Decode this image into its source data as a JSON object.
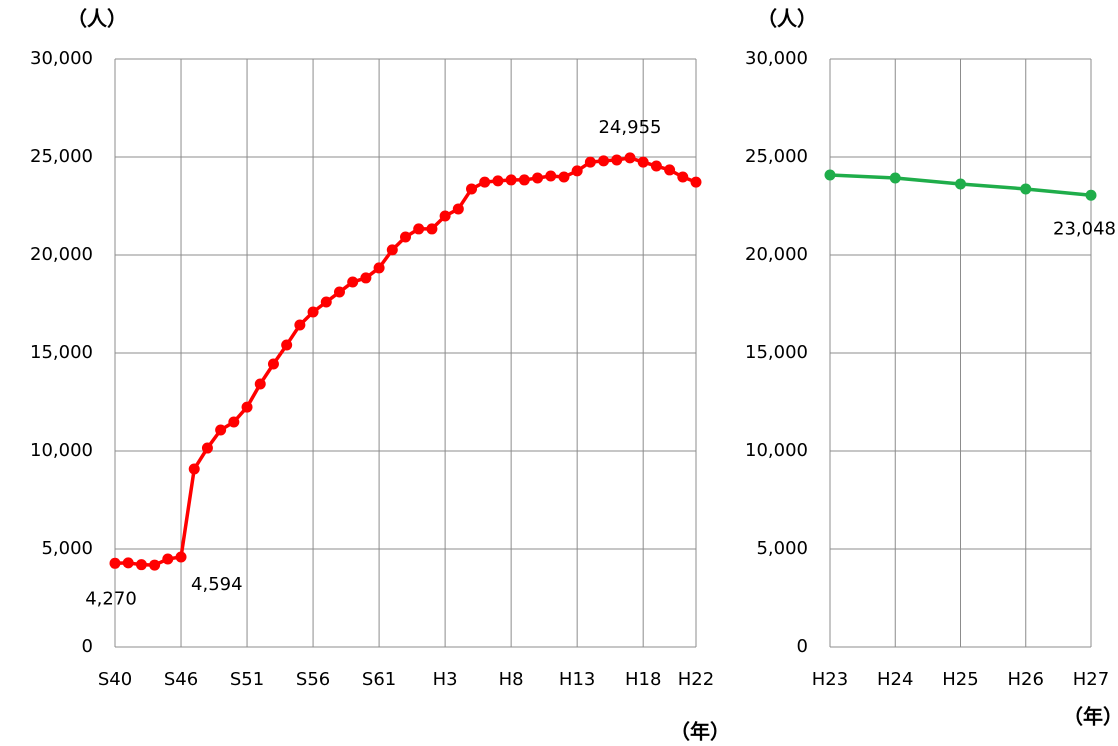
{
  "chart_data": [
    {
      "type": "line",
      "y_label": "（人）",
      "x_label": "（年）",
      "color": "#ff0000",
      "grid": true,
      "categories": [
        "S40",
        null,
        null,
        null,
        null,
        "S46",
        null,
        null,
        null,
        null,
        "S51",
        null,
        null,
        null,
        null,
        "S56",
        null,
        null,
        null,
        null,
        "S61",
        null,
        null,
        null,
        null,
        "H3",
        null,
        null,
        null,
        null,
        "H8",
        null,
        null,
        null,
        null,
        "H13",
        null,
        null,
        null,
        null,
        "H18",
        null,
        null,
        null,
        "H22"
      ],
      "values": [
        4270,
        4290,
        4200,
        4180,
        4490,
        4594,
        9080,
        10150,
        11070,
        11480,
        12240,
        13420,
        14440,
        15410,
        16430,
        17090,
        17600,
        18110,
        18620,
        18830,
        19340,
        20260,
        20920,
        21330,
        21330,
        21990,
        22350,
        23370,
        23720,
        23780,
        23830,
        23830,
        23930,
        24030,
        23980,
        24290,
        24740,
        24800,
        24850,
        24955,
        24740,
        24540,
        24340,
        23980,
        23720
      ],
      "value_labels": [
        "4,270",
        null,
        null,
        null,
        null,
        "4,594",
        null,
        null,
        null,
        null,
        null,
        null,
        null,
        null,
        null,
        null,
        null,
        null,
        null,
        null,
        null,
        null,
        null,
        null,
        null,
        null,
        null,
        null,
        null,
        null,
        null,
        null,
        null,
        null,
        null,
        null,
        null,
        null,
        null,
        "24,955",
        null,
        null,
        null,
        null,
        null
      ],
      "ylim": [
        0,
        30000
      ],
      "yticks": [
        0,
        {
          "value": 5000,
          "label": "5,000"
        },
        {
          "value": 10000,
          "label": "10,000"
        },
        {
          "value": 15000,
          "label": "15,000"
        },
        {
          "value": 20000,
          "label": "20,000"
        },
        {
          "value": 25000,
          "label": "25,000"
        },
        {
          "value": 30000,
          "label": "30,000"
        }
      ]
    },
    {
      "type": "line",
      "y_label": "（人）",
      "x_label": "（年）",
      "color": "#1fad4a",
      "grid": true,
      "categories": [
        "H23",
        "H24",
        "H25",
        "H26",
        "H27"
      ],
      "values": [
        24080,
        23930,
        23620,
        23370,
        23048
      ],
      "value_labels": [
        null,
        null,
        null,
        null,
        "23,048"
      ],
      "ylim": [
        0,
        30000
      ],
      "yticks": [
        0,
        {
          "value": 5000,
          "label": "5,000"
        },
        {
          "value": 10000,
          "label": "10,000"
        },
        {
          "value": 15000,
          "label": "15,000"
        },
        {
          "value": 20000,
          "label": "20,000"
        },
        {
          "value": 25000,
          "label": "25,000"
        },
        {
          "value": 30000,
          "label": "30,000"
        }
      ]
    }
  ]
}
